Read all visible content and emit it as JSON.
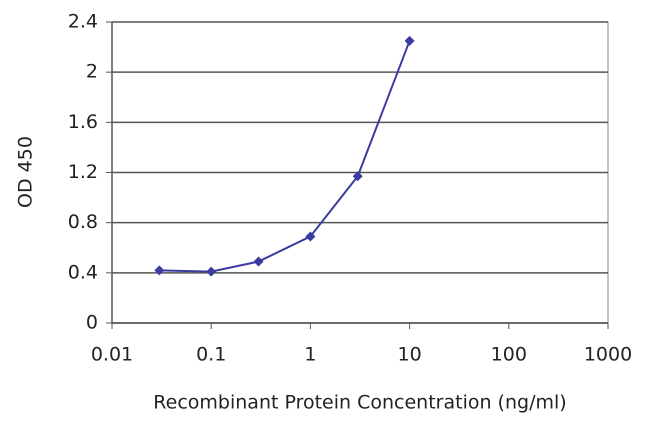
{
  "chart_data": {
    "type": "line",
    "x_label": "Recombinant Protein Concentration (ng/ml)",
    "y_label": "OD 450",
    "x": [
      0.03,
      0.1,
      0.3,
      1,
      3,
      10
    ],
    "values": [
      0.42,
      0.41,
      0.49,
      0.69,
      1.17,
      2.25
    ],
    "color": "#3b3ba0",
    "xscale": "log",
    "xlim": [
      0.01,
      1000
    ],
    "xticks": [
      0.01,
      0.1,
      1,
      10,
      100,
      1000
    ],
    "ylim": [
      0,
      2.4
    ],
    "yticks": [
      0,
      0.4,
      0.8,
      1.2,
      1.6,
      2,
      2.4
    ],
    "grid": true
  }
}
